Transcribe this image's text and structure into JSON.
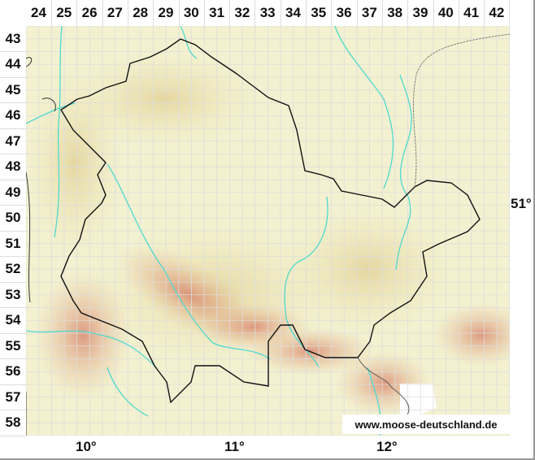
{
  "grid_columns": [
    "24",
    "25",
    "26",
    "27",
    "28",
    "29",
    "30",
    "31",
    "32",
    "33",
    "34",
    "35",
    "36",
    "37",
    "38",
    "39",
    "40",
    "41",
    "42"
  ],
  "grid_rows": [
    "43",
    "44",
    "45",
    "46",
    "47",
    "48",
    "49",
    "50",
    "51",
    "52",
    "53",
    "54",
    "55",
    "56",
    "57",
    "58"
  ],
  "longitude_labels": [
    "10°",
    "11°",
    "12°"
  ],
  "latitude_labels": [
    "51°"
  ],
  "credit": "www.moose-deutschland.de",
  "colors": {
    "lowland": "#f3f3cf",
    "upland": "#e9dca8",
    "highland": "#d9967a",
    "border": "#111111",
    "river": "#4fd9d0",
    "grid": "#dddddd"
  }
}
